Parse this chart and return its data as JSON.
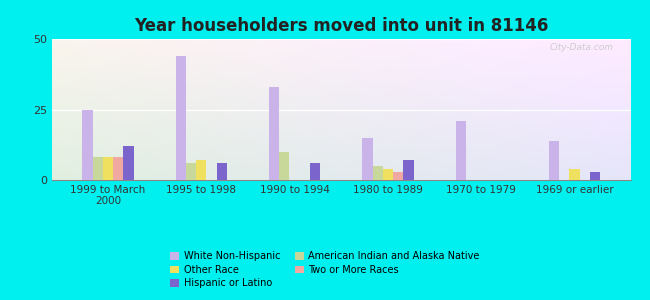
{
  "title": "Year householders moved into unit in 81146",
  "categories": [
    "1999 to March\n2000",
    "1995 to 1998",
    "1990 to 1994",
    "1980 to 1989",
    "1970 to 1979",
    "1969 or earlier"
  ],
  "series_order": [
    "White Non-Hispanic",
    "American Indian and Alaska Native",
    "Other Race",
    "Two or More Races",
    "Hispanic or Latino"
  ],
  "series": {
    "White Non-Hispanic": [
      25,
      44,
      33,
      15,
      21,
      14
    ],
    "American Indian and Alaska Native": [
      8,
      6,
      10,
      5,
      0,
      0
    ],
    "Other Race": [
      8,
      7,
      0,
      4,
      0,
      4
    ],
    "Two or More Races": [
      8,
      0,
      0,
      3,
      0,
      0
    ],
    "Hispanic or Latino": [
      12,
      6,
      6,
      7,
      0,
      3
    ]
  },
  "colors": {
    "White Non-Hispanic": "#c9b3e8",
    "American Indian and Alaska Native": "#c8d89a",
    "Other Race": "#f0e060",
    "Two or More Races": "#f0a8a0",
    "Hispanic or Latino": "#7b65cc"
  },
  "ylim": [
    0,
    50
  ],
  "yticks": [
    0,
    25,
    50
  ],
  "background_color": "#00efef",
  "watermark": "City-Data.com",
  "legend_left": [
    "White Non-Hispanic",
    "Other Race",
    "Hispanic or Latino"
  ],
  "legend_right": [
    "American Indian and Alaska Native",
    "Two or More Races"
  ]
}
